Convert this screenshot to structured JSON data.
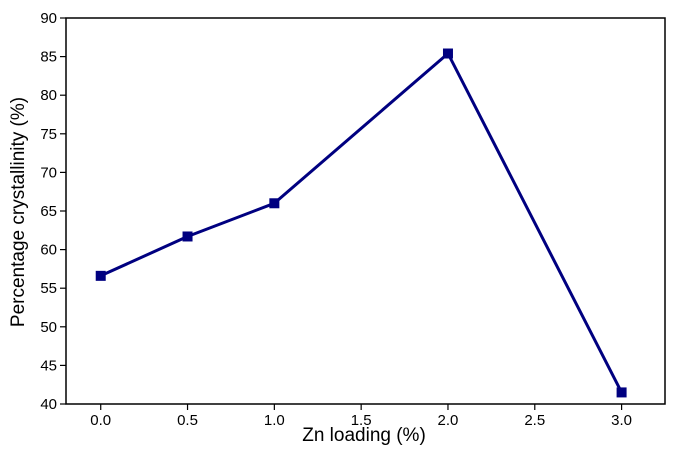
{
  "chart_data": {
    "type": "line",
    "xlabel": "Zn loading (%)",
    "ylabel": "Percentage crystallinity (%)",
    "xlim": [
      -0.2,
      3.25
    ],
    "ylim": [
      40,
      90
    ],
    "x_ticks": [
      "0.0",
      "0.5",
      "1.0",
      "1.5",
      "2.0",
      "2.5",
      "3.0"
    ],
    "y_ticks": [
      "40",
      "45",
      "50",
      "55",
      "60",
      "65",
      "70",
      "75",
      "80",
      "85",
      "90"
    ],
    "series": [
      {
        "x": [
          0.0,
          0.5,
          1.0,
          2.0,
          3.0
        ],
        "y": [
          56.6,
          61.7,
          66.0,
          85.4,
          41.5
        ],
        "color": "#000080",
        "marker": "square"
      }
    ],
    "grid": false,
    "legend": "none"
  }
}
